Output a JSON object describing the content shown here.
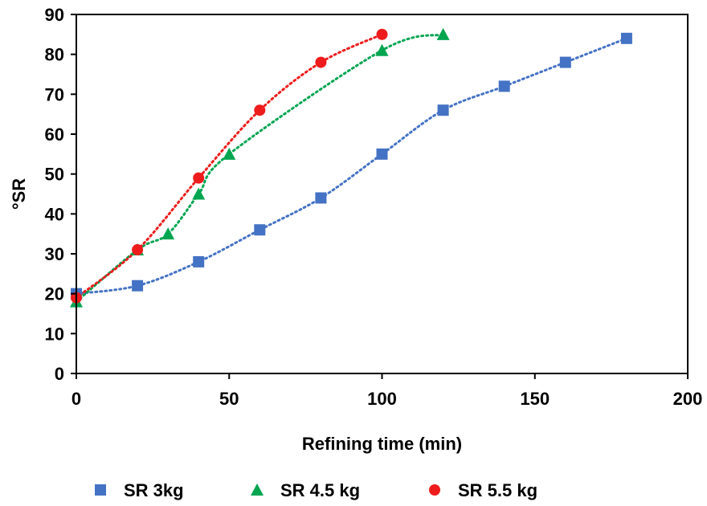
{
  "chart_data": {
    "type": "scatter",
    "xlabel": "Refining time (min)",
    "ylabel": "°SR",
    "xlim": [
      0,
      200
    ],
    "ylim": [
      0,
      90
    ],
    "xticks": [
      0,
      50,
      100,
      150,
      200
    ],
    "yticks": [
      0,
      10,
      20,
      30,
      40,
      50,
      60,
      70,
      80,
      90
    ],
    "grid": false,
    "legend_position": "bottom",
    "series": [
      {
        "name": "SR 3kg",
        "marker": "square",
        "color": "#4472C4",
        "trendline": "dotted",
        "x": [
          0,
          20,
          40,
          60,
          80,
          100,
          120,
          140,
          160,
          180
        ],
        "y": [
          20,
          22,
          28,
          36,
          44,
          55,
          66,
          72,
          78,
          84
        ]
      },
      {
        "name": "SR 4.5 kg",
        "marker": "triangle",
        "color": "#00A550",
        "trendline": "dotted",
        "x": [
          0,
          20,
          30,
          40,
          50,
          100,
          120
        ],
        "y": [
          18,
          31,
          35,
          45,
          55,
          81,
          85
        ]
      },
      {
        "name": "SR 5.5 kg",
        "marker": "circle",
        "color": "#EE1C1C",
        "trendline": "dotted",
        "x": [
          0,
          20,
          40,
          60,
          80,
          100
        ],
        "y": [
          19,
          31,
          49,
          66,
          78,
          85
        ]
      }
    ]
  }
}
